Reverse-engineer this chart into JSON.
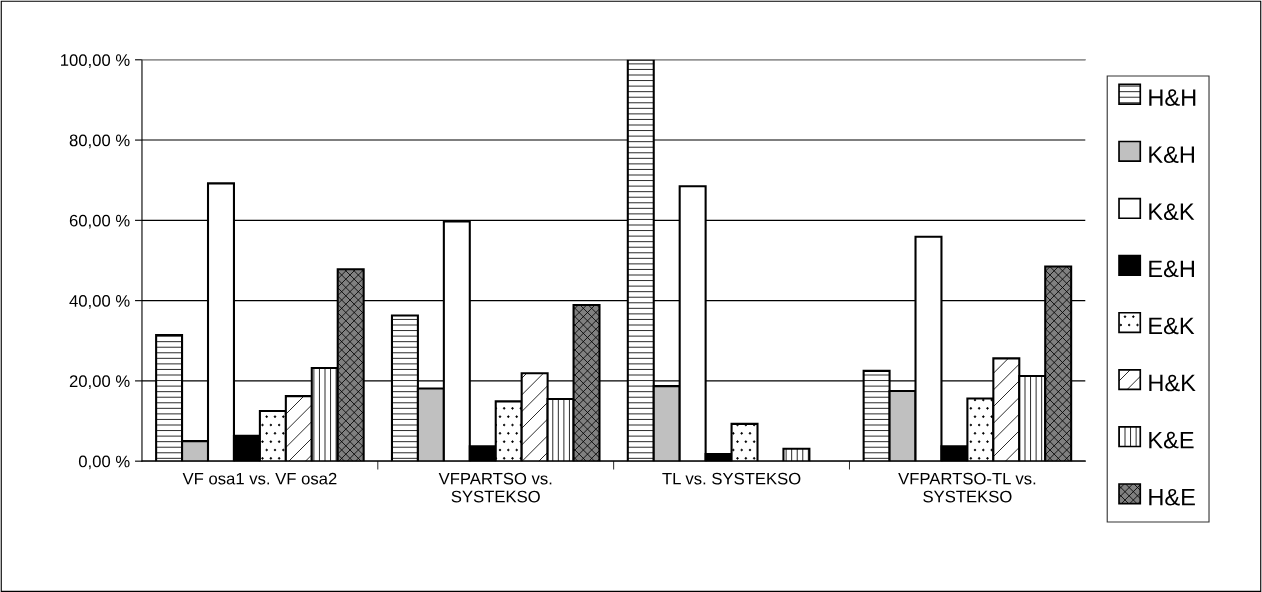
{
  "chart_data": {
    "type": "bar",
    "categories": [
      "VF osa1 vs. VF osa2",
      "VFPARTSO vs.\nSYSTEKSO",
      "TL vs. SYSTEKSO",
      "VFPARTSO-TL vs.\nSYSTEKSO"
    ],
    "series": [
      {
        "name": "H&H",
        "color": "#ffffff",
        "values": [
          31.4,
          36.3,
          100,
          22.5
        ]
      },
      {
        "name": "K&H",
        "color": "#c0c0c0",
        "values": [
          5.0,
          18.1,
          18.7,
          17.5
        ]
      },
      {
        "name": "K&K",
        "color": "#ffffff",
        "values": [
          69.2,
          59.7,
          68.5,
          55.9
        ]
      },
      {
        "name": "E&H",
        "color": "#000000",
        "values": [
          6.3,
          3.7,
          1.8,
          3.7
        ]
      },
      {
        "name": "E&K",
        "color": "#ffffff",
        "values": [
          12.5,
          14.9,
          9.3,
          15.6
        ]
      },
      {
        "name": "H&K",
        "color": "#ffffff",
        "values": [
          16.2,
          21.9,
          null,
          25.6
        ]
      },
      {
        "name": "K&E",
        "color": "#ffffff",
        "values": [
          23.2,
          15.5,
          3.1,
          21.2
        ]
      },
      {
        "name": "H&E",
        "color": "#808080",
        "values": [
          47.8,
          38.9,
          null,
          48.5
        ]
      }
    ],
    "ylim": [
      0,
      100
    ],
    "yticks": [
      {
        "value": 0,
        "label": "0,00 %"
      },
      {
        "value": 20,
        "label": "20,00 %"
      },
      {
        "value": 40,
        "label": "40,00 %"
      },
      {
        "value": 60,
        "label": "60,00 %"
      },
      {
        "value": 80,
        "label": "80,00 %"
      },
      {
        "value": 100,
        "label": "100,00 %"
      }
    ],
    "grid": "y",
    "legend": "right"
  }
}
